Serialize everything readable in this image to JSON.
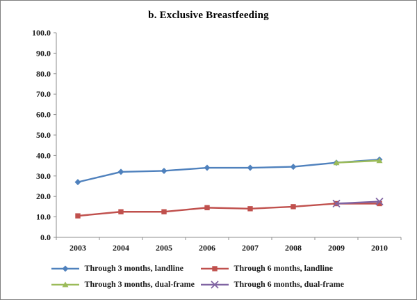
{
  "chart_data": {
    "type": "line",
    "title": "b. Exclusive Breastfeeding",
    "categories": [
      "2003",
      "2004",
      "2005",
      "2006",
      "2007",
      "2008",
      "2009",
      "2010"
    ],
    "xlabel": "",
    "ylabel": "",
    "ylim": [
      0,
      100
    ],
    "ytick_step": 10,
    "ytick_decimals": 1,
    "grid": false,
    "legend_position": "bottom",
    "axis_color": "#8c8c8c",
    "label_color": "#1a1a1a",
    "series": [
      {
        "name": "Through 3 months, landline",
        "color": "#4F81BD",
        "marker": "diamond",
        "values": [
          27,
          32,
          32.5,
          34,
          34,
          34.5,
          36.5,
          38
        ]
      },
      {
        "name": "Through 6 months, landline",
        "color": "#C0504D",
        "marker": "square",
        "values": [
          10.5,
          12.5,
          12.5,
          14.5,
          14,
          15,
          16.5,
          16.5
        ]
      },
      {
        "name": "Through 3 months, dual-frame",
        "color": "#9BBB59",
        "marker": "triangle",
        "values": [
          null,
          null,
          null,
          null,
          null,
          null,
          36.5,
          37.5
        ]
      },
      {
        "name": "Through 6 months, dual-frame",
        "color": "#8064A2",
        "marker": "x",
        "values": [
          null,
          null,
          null,
          null,
          null,
          null,
          16.5,
          17.5
        ]
      }
    ]
  }
}
